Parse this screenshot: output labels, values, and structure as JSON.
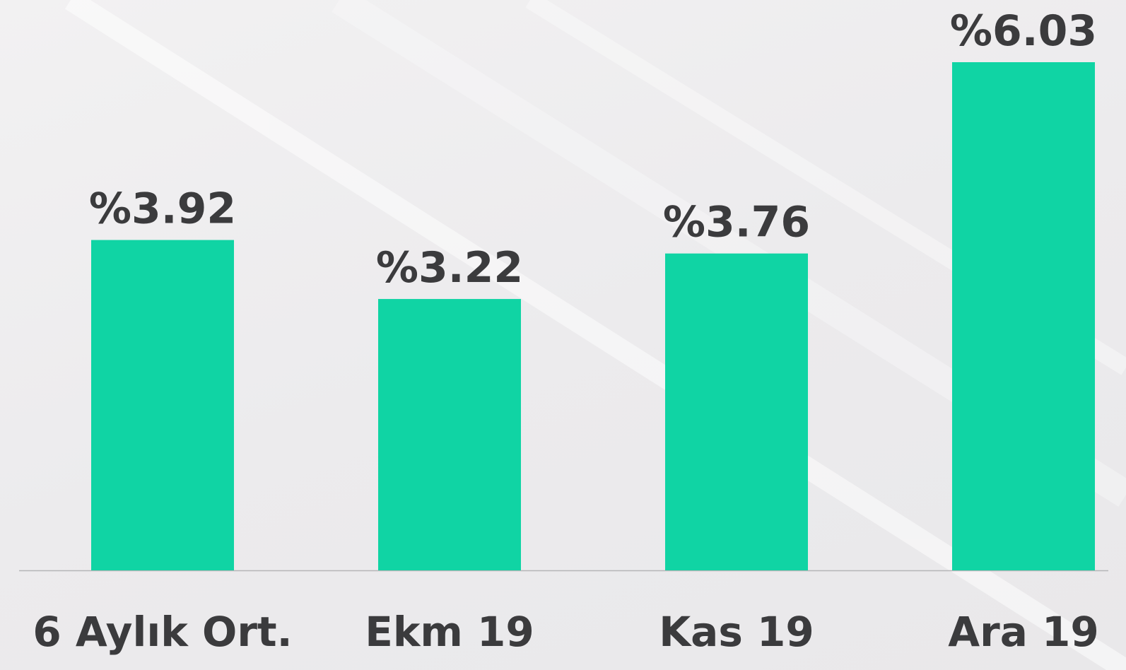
{
  "chart_data": {
    "type": "bar",
    "categories": [
      "6 Aylık Ort.",
      "Ekm 19",
      "Kas 19",
      "Ara 19"
    ],
    "values": [
      3.92,
      3.22,
      3.76,
      6.03
    ],
    "value_labels": [
      "%3.92",
      "%3.22",
      "%3.76",
      "%6.03"
    ],
    "color": "#10d4a4"
  }
}
